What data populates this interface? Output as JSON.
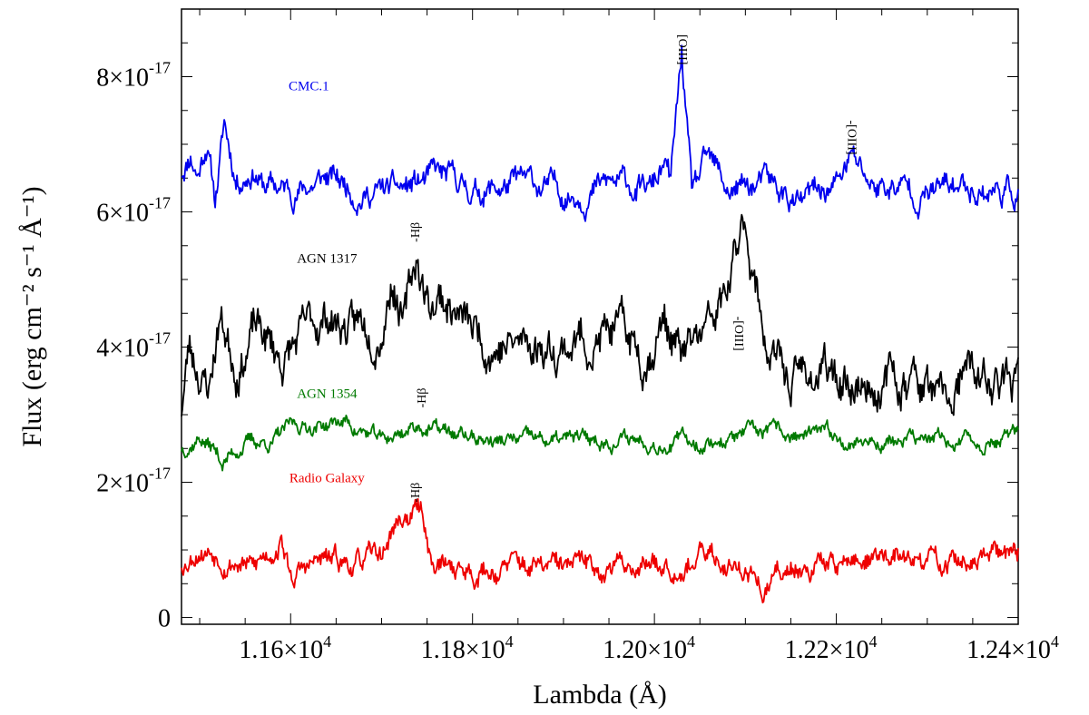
{
  "chart_data": {
    "type": "line",
    "title": "",
    "xlabel": "Lambda (Å)",
    "ylabel": "Flux (erg cm⁻² s⁻¹ Å⁻¹)",
    "xlim": [
      11480,
      12400
    ],
    "ylim": [
      -1e-18,
      9e-17
    ],
    "x_ticks": [
      {
        "value": 11600,
        "label": "1.16×10",
        "exp": "4"
      },
      {
        "value": 11800,
        "label": "1.18×10",
        "exp": "4"
      },
      {
        "value": 12000,
        "label": "1.20×10",
        "exp": "4"
      },
      {
        "value": 12200,
        "label": "1.22×10",
        "exp": "4"
      },
      {
        "value": 12400,
        "label": "1.24×10",
        "exp": "4"
      }
    ],
    "y_ticks": [
      {
        "value": 0,
        "label": "0",
        "exp": ""
      },
      {
        "value": 2e-17,
        "label": "2×10",
        "exp": "-17"
      },
      {
        "value": 4e-17,
        "label": "4×10",
        "exp": "-17"
      },
      {
        "value": 6e-17,
        "label": "6×10",
        "exp": "-17"
      },
      {
        "value": 8e-17,
        "label": "8×10",
        "exp": "-17"
      }
    ],
    "series": [
      {
        "name": "CMC.1",
        "color": "#0000ee",
        "baseline": 6.4e-17,
        "noise": 2.5e-18,
        "seed": 11,
        "label_at": [
          11620,
          7.8e-17
        ],
        "points": [
          [
            11480,
            6.6e-17
          ],
          [
            11490,
            6.9e-17
          ],
          [
            11498,
            6.6e-17
          ],
          [
            11508,
            7.1e-17
          ],
          [
            11517,
            6.2e-17
          ],
          [
            11527,
            7.3e-17
          ],
          [
            11540,
            6.5e-17
          ],
          [
            11560,
            6.7e-17
          ],
          [
            11570,
            6.4e-17
          ],
          [
            11600,
            6.3e-17
          ],
          [
            11640,
            6.5e-17
          ],
          [
            11680,
            6.3e-17
          ],
          [
            11720,
            6.3e-17
          ],
          [
            11760,
            6.5e-17
          ],
          [
            11800,
            6.3e-17
          ],
          [
            11850,
            6.4e-17
          ],
          [
            11900,
            6.3e-17
          ],
          [
            11960,
            6.4e-17
          ],
          [
            11995,
            6.3e-17
          ],
          [
            12010,
            6.65e-17
          ],
          [
            12018,
            6.4e-17
          ],
          [
            12030,
            8.3e-17
          ],
          [
            12041,
            6.2e-17
          ],
          [
            12058,
            6.7e-17
          ],
          [
            12080,
            6.3e-17
          ],
          [
            12120,
            6.4e-17
          ],
          [
            12160,
            6.1e-17
          ],
          [
            12200,
            6.4e-17
          ],
          [
            12216,
            6.8e-17
          ],
          [
            12240,
            6.4e-17
          ],
          [
            12300,
            6.3e-17
          ],
          [
            12350,
            6.4e-17
          ],
          [
            12400,
            6.3e-17
          ]
        ]
      },
      {
        "name": "AGN 1317",
        "color": "#000000",
        "baseline": 4.2e-17,
        "noise": 4e-18,
        "seed": 23,
        "label_at": [
          11640,
          5.25e-17
        ],
        "points": [
          [
            11480,
            3.1e-17
          ],
          [
            11488,
            4e-17
          ],
          [
            11500,
            3.7e-17
          ],
          [
            11510,
            3.4e-17
          ],
          [
            11522,
            4.5e-17
          ],
          [
            11540,
            3.8e-17
          ],
          [
            11560,
            4.3e-17
          ],
          [
            11590,
            3.8e-17
          ],
          [
            11620,
            4.2e-17
          ],
          [
            11640,
            4.5e-17
          ],
          [
            11670,
            4.2e-17
          ],
          [
            11700,
            4.5e-17
          ],
          [
            11712,
            5.2e-17
          ],
          [
            11725,
            4.4e-17
          ],
          [
            11738,
            5.3e-17
          ],
          [
            11752,
            4.6e-17
          ],
          [
            11765,
            4.8e-17
          ],
          [
            11800,
            4.2e-17
          ],
          [
            11850,
            4e-17
          ],
          [
            11900,
            4.1e-17
          ],
          [
            11950,
            4.2e-17
          ],
          [
            11990,
            3.9e-17
          ],
          [
            12010,
            4.5e-17
          ],
          [
            12030,
            3.8e-17
          ],
          [
            12060,
            4.2e-17
          ],
          [
            12080,
            4.7e-17
          ],
          [
            12092,
            5.4e-17
          ],
          [
            12100,
            5.9e-17
          ],
          [
            12110,
            5e-17
          ],
          [
            12125,
            4e-17
          ],
          [
            12145,
            3.5e-17
          ],
          [
            12170,
            3.6e-17
          ],
          [
            12220,
            3.5e-17
          ],
          [
            12260,
            3.5e-17
          ],
          [
            12290,
            3.5e-17
          ],
          [
            12320,
            3e-17
          ],
          [
            12340,
            3.5e-17
          ],
          [
            12400,
            3.4e-17
          ]
        ]
      },
      {
        "name": "AGN 1354",
        "color": "#007a00",
        "baseline": 2.65e-17,
        "noise": 1.5e-18,
        "seed": 37,
        "label_at": [
          11640,
          3.25e-17
        ],
        "points": [
          [
            11480,
            2.5e-17
          ],
          [
            11500,
            2.7e-17
          ],
          [
            11515,
            2.5e-17
          ],
          [
            11525,
            2.3e-17
          ],
          [
            11550,
            2.6e-17
          ],
          [
            11580,
            2.6e-17
          ],
          [
            11600,
            2.8e-17
          ],
          [
            11660,
            2.9e-17
          ],
          [
            11700,
            2.6e-17
          ],
          [
            11740,
            2.85e-17
          ],
          [
            11780,
            2.7e-17
          ],
          [
            11830,
            2.6e-17
          ],
          [
            11900,
            2.6e-17
          ],
          [
            11980,
            2.65e-17
          ],
          [
            12050,
            2.6e-17
          ],
          [
            12120,
            2.7e-17
          ],
          [
            12200,
            2.65e-17
          ],
          [
            12280,
            2.6e-17
          ],
          [
            12340,
            2.6e-17
          ],
          [
            12400,
            2.65e-17
          ]
        ]
      },
      {
        "name": "Radio Galaxy",
        "color": "#ee0000",
        "baseline": 8e-18,
        "noise": 2.2e-18,
        "seed": 53,
        "label_at": [
          11640,
          2e-17
        ],
        "points": [
          [
            11480,
            8e-18
          ],
          [
            11500,
            1.1e-17
          ],
          [
            11540,
            9e-18
          ],
          [
            11560,
            7e-18
          ],
          [
            11590,
            1.2e-17
          ],
          [
            11600,
            6e-18
          ],
          [
            11630,
            8e-18
          ],
          [
            11680,
            8e-18
          ],
          [
            11700,
            9e-18
          ],
          [
            11712,
            1.3e-17
          ],
          [
            11722,
            1.45e-17
          ],
          [
            11745,
            1.6e-17
          ],
          [
            11755,
            8e-18
          ],
          [
            11800,
            7e-18
          ],
          [
            11850,
            7.5e-18
          ],
          [
            11900,
            7e-18
          ],
          [
            11950,
            7.5e-18
          ],
          [
            12000,
            8.5e-18
          ],
          [
            12050,
            9e-18
          ],
          [
            12100,
            8e-18
          ],
          [
            12120,
            4e-18
          ],
          [
            12150,
            8e-18
          ],
          [
            12200,
            8e-18
          ],
          [
            12250,
            9e-18
          ],
          [
            12300,
            8e-18
          ],
          [
            12360,
            8e-18
          ],
          [
            12400,
            9e-18
          ]
        ]
      }
    ],
    "annotations": [
      {
        "text": "[OIII]",
        "x": 12030,
        "y": 8.4e-17,
        "rotate": 90
      },
      {
        "text": "-[OIII]",
        "x": 12216,
        "y": 7.1e-17,
        "rotate": 90
      },
      {
        "text": "-Hβ",
        "x": 11738,
        "y": 5.7e-17,
        "rotate": -90
      },
      {
        "text": "-[OIII]",
        "x": 12092,
        "y": 4.2e-17,
        "rotate": 90
      },
      {
        "text": "-Hβ",
        "x": 11745,
        "y": 3.25e-17,
        "rotate": -90
      },
      {
        "text": "-Hβ",
        "x": 11738,
        "y": 1.85e-17,
        "rotate": -90
      }
    ]
  }
}
